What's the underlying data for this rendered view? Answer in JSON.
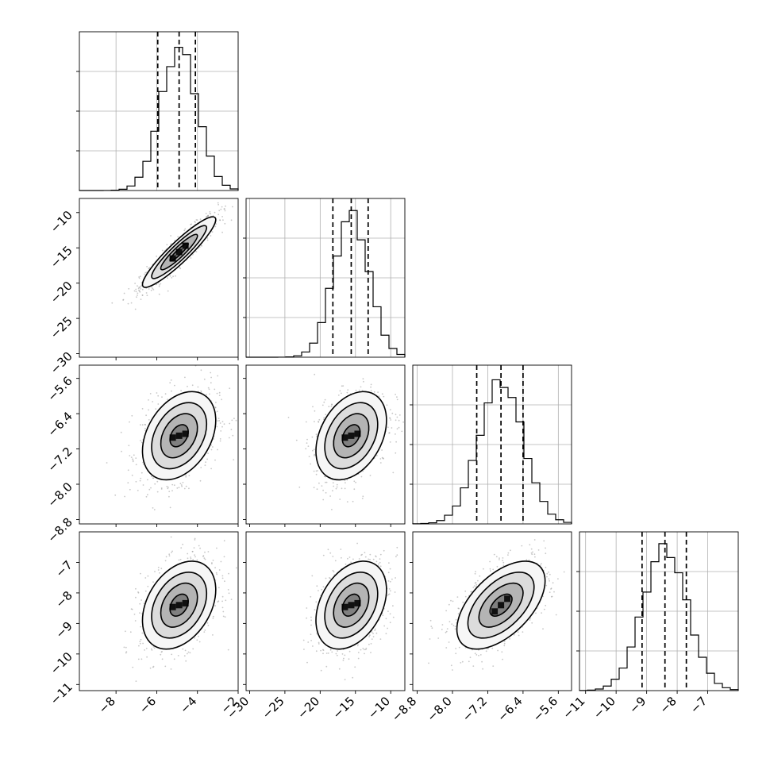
{
  "chart_data": {
    "type": "corner",
    "parameters": [
      {
        "index": 0,
        "range": [
          -9.8,
          -2.0
        ],
        "ticks": [
          -8,
          -6,
          -4,
          -2
        ],
        "tick_labels": [
          "−8",
          "−6",
          "−4",
          "−2"
        ],
        "median": -4.9,
        "q16": -5.95,
        "q84": -4.1,
        "sigma": 0.9
      },
      {
        "index": 1,
        "range": [
          -30.5,
          -8.0
        ],
        "ticks": [
          -30,
          -25,
          -20,
          -15,
          -10
        ],
        "tick_labels": [
          "−30",
          "−25",
          "−20",
          "−15",
          "−10"
        ],
        "median": -15.6,
        "q16": -18.2,
        "q84": -13.2,
        "sigma": 2.5
      },
      {
        "index": 2,
        "range": [
          -8.9,
          -5.3
        ],
        "ticks": [
          -8.8,
          -8.0,
          -7.2,
          -6.4,
          -5.6
        ],
        "tick_labels": [
          "−8.8",
          "−8.0",
          "−7.2",
          "−6.4",
          "−5.6"
        ],
        "median": -6.9,
        "q16": -7.45,
        "q84": -6.4,
        "sigma": 0.5
      },
      {
        "index": 3,
        "range": [
          -11.2,
          -6.0
        ],
        "ticks": [
          -11,
          -10,
          -9,
          -8,
          -7
        ],
        "tick_labels": [
          "−11",
          "−10",
          "−9",
          "−8",
          "−7"
        ],
        "median": -8.4,
        "q16": -9.15,
        "q84": -7.7,
        "sigma": 0.72
      }
    ],
    "correlations": {
      "1_0": 0.92,
      "2_0": 0.35,
      "2_1": 0.35,
      "3_0": 0.35,
      "3_1": 0.35,
      "3_2": 0.55
    },
    "contour_levels_sigma": [
      0.5,
      1.0,
      1.5,
      2.0
    ],
    "grid": true,
    "legend": "none"
  }
}
